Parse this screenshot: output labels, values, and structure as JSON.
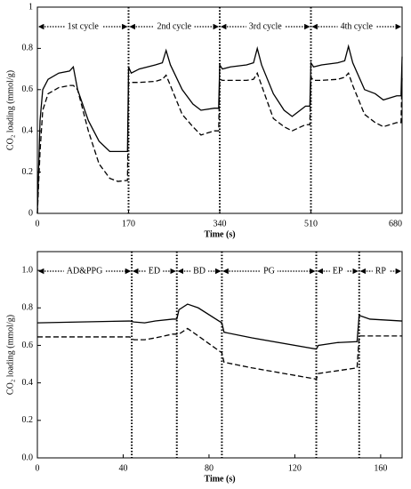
{
  "chart_data": [
    {
      "type": "line",
      "x_label": "Time (s)",
      "y_label": "CO₂ loading (mmol/g)",
      "xlim": [
        0,
        680
      ],
      "xticks": [
        0,
        170,
        340,
        510,
        680
      ],
      "ylim": [
        0,
        1
      ],
      "yticks": [
        0,
        0.2,
        0.4,
        0.6,
        0.8,
        1
      ],
      "phases": [
        {
          "label": "1st cycle",
          "start": 0,
          "end": 170
        },
        {
          "label": "2nd cycle",
          "start": 170,
          "end": 340
        },
        {
          "label": "3rd cycle",
          "start": 340,
          "end": 510
        },
        {
          "label": "4th cycle",
          "start": 510,
          "end": 680
        }
      ],
      "x": [
        0,
        5,
        10,
        20,
        40,
        60,
        67,
        75,
        95,
        115,
        135,
        150,
        168,
        170,
        175,
        190,
        220,
        233,
        240,
        248,
        270,
        290,
        305,
        330,
        338,
        340,
        345,
        360,
        390,
        403,
        410,
        418,
        440,
        460,
        475,
        500,
        508,
        510,
        515,
        530,
        560,
        573,
        580,
        588,
        610,
        630,
        645,
        670,
        678,
        680
      ],
      "series": [
        {
          "color": "#000000",
          "dashed": false,
          "values": [
            0,
            0.45,
            0.6,
            0.65,
            0.68,
            0.69,
            0.71,
            0.6,
            0.45,
            0.35,
            0.3,
            0.3,
            0.3,
            0.71,
            0.68,
            0.7,
            0.72,
            0.73,
            0.79,
            0.72,
            0.6,
            0.53,
            0.5,
            0.51,
            0.51,
            0.72,
            0.7,
            0.71,
            0.72,
            0.73,
            0.8,
            0.72,
            0.58,
            0.5,
            0.47,
            0.52,
            0.52,
            0.73,
            0.71,
            0.72,
            0.73,
            0.74,
            0.81,
            0.73,
            0.6,
            0.58,
            0.55,
            0.57,
            0.57,
            0.76
          ]
        },
        {
          "color": "#000000",
          "dashed": true,
          "values": [
            0,
            0.3,
            0.5,
            0.58,
            0.61,
            0.62,
            0.62,
            0.6,
            0.4,
            0.24,
            0.17,
            0.155,
            0.16,
            0.63,
            0.635,
            0.635,
            0.64,
            0.65,
            0.67,
            0.62,
            0.48,
            0.42,
            0.38,
            0.4,
            0.4,
            0.65,
            0.645,
            0.645,
            0.645,
            0.65,
            0.68,
            0.62,
            0.46,
            0.42,
            0.4,
            0.43,
            0.43,
            0.66,
            0.645,
            0.645,
            0.65,
            0.66,
            0.68,
            0.62,
            0.48,
            0.44,
            0.42,
            0.44,
            0.44,
            0.66
          ]
        }
      ]
    },
    {
      "type": "line",
      "x_label": "Time (s)",
      "y_label": "CO₂ loading (mmol/g)",
      "xlim": [
        0,
        170
      ],
      "xticks": [
        0,
        40,
        80,
        120,
        160
      ],
      "ylim": [
        0,
        1.1
      ],
      "yticks": [
        {
          "value": 0,
          "label": "0.0"
        },
        0.2,
        0.4,
        0.6,
        0.8,
        {
          "value": 1,
          "label": "1.0"
        }
      ],
      "phases": [
        {
          "label": "AD&PPG",
          "start": 0,
          "end": 44
        },
        {
          "label": "ED",
          "start": 44,
          "end": 65
        },
        {
          "label": "BD",
          "start": 65,
          "end": 86
        },
        {
          "label": "PG",
          "start": 86,
          "end": 130
        },
        {
          "label": "EP",
          "start": 130,
          "end": 150
        },
        {
          "label": "RP",
          "start": 150,
          "end": 170
        }
      ],
      "x": [
        0,
        20,
        43,
        45,
        50,
        55,
        63,
        65,
        66,
        70,
        75,
        86,
        87,
        100,
        130,
        131,
        140,
        149,
        150,
        155,
        170
      ],
      "series": [
        {
          "color": "#000000",
          "dashed": false,
          "values": [
            0.72,
            0.725,
            0.73,
            0.725,
            0.72,
            0.73,
            0.74,
            0.74,
            0.79,
            0.82,
            0.8,
            0.72,
            0.67,
            0.64,
            0.58,
            0.6,
            0.615,
            0.62,
            0.76,
            0.74,
            0.73
          ]
        },
        {
          "color": "#000000",
          "dashed": true,
          "values": [
            0.645,
            0.645,
            0.645,
            0.63,
            0.63,
            0.64,
            0.66,
            0.66,
            0.66,
            0.69,
            0.65,
            0.56,
            0.51,
            0.48,
            0.42,
            0.45,
            0.465,
            0.48,
            0.65,
            0.65,
            0.65
          ]
        }
      ]
    }
  ]
}
